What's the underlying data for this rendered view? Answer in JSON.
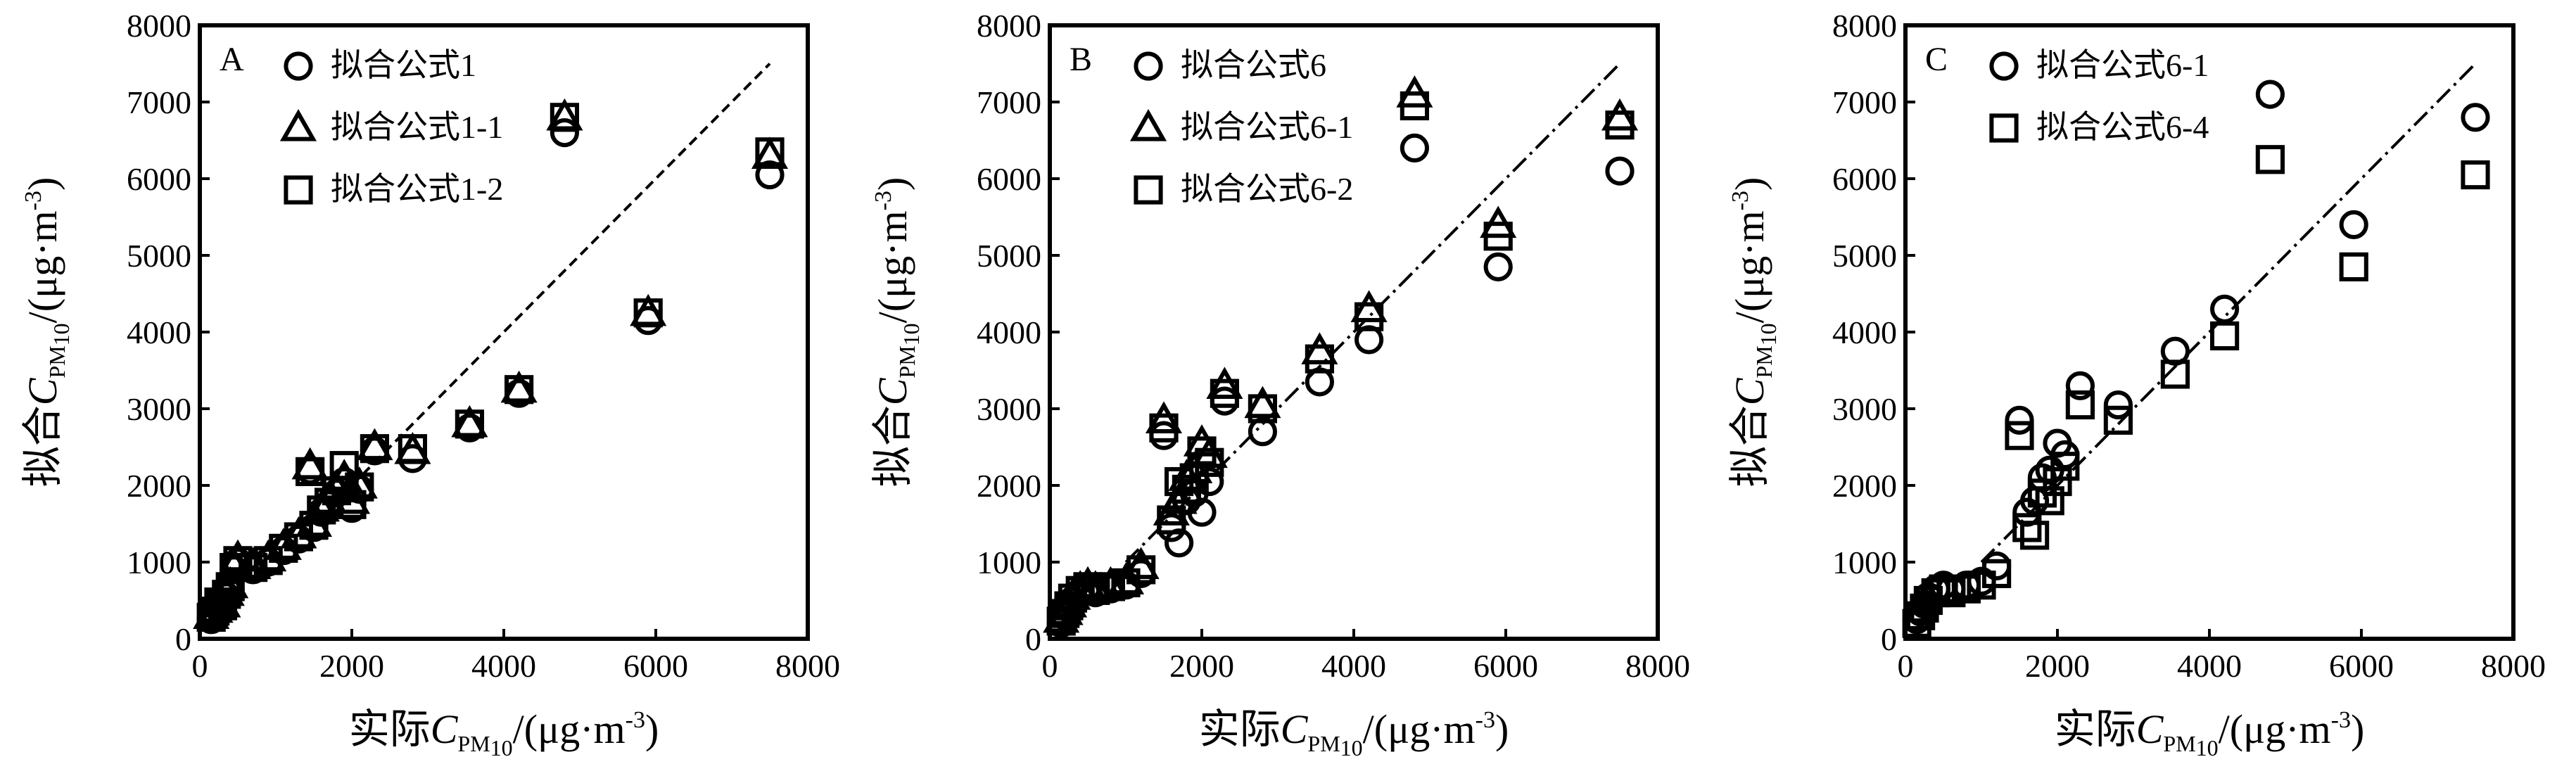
{
  "chart_data": [
    {
      "type": "scatter",
      "panel_label": "A",
      "xlabel": {
        "prefix": "实际",
        "var": "C",
        "sub": "PM10",
        "sub_main": "PM",
        "sub_digits": "10",
        "unit": "/(μg·m",
        "sup": "-3",
        "close": ")"
      },
      "ylabel": {
        "prefix": "拟合",
        "var": "C",
        "sub": "PM10",
        "sub_main": "PM",
        "sub_digits": "10",
        "unit": "/(μg·m",
        "sup": "-3",
        "close": ")"
      },
      "xlim": [
        0,
        8000
      ],
      "ylim": [
        0,
        8000
      ],
      "xticks": [
        "0",
        "2000",
        "4000",
        "6000",
        "8000"
      ],
      "yticks": [
        "0",
        "1000",
        "2000",
        "3000",
        "4000",
        "5000",
        "6000",
        "7000",
        "8000"
      ],
      "grid": false,
      "legend_position": "top-left",
      "reference_line": {
        "style": "dashed",
        "x": [
          2000,
          7500
        ],
        "y": [
          2000,
          7500
        ]
      },
      "series": [
        {
          "name": "拟合公式1",
          "marker": "circle",
          "x": [
            150,
            200,
            250,
            300,
            350,
            400,
            450,
            500,
            700,
            900,
            1100,
            1300,
            1450,
            1500,
            1600,
            1700,
            1800,
            1900,
            2000,
            2100,
            2300,
            2800,
            3550,
            4200,
            4800,
            5900,
            7500
          ],
          "y": [
            250,
            350,
            450,
            400,
            550,
            650,
            900,
            1000,
            900,
            1000,
            1150,
            1300,
            2200,
            1450,
            1650,
            1750,
            1900,
            2050,
            1700,
            1950,
            2450,
            2350,
            2750,
            3200,
            6600,
            4150,
            6050
          ]
        },
        {
          "name": "拟合公式1-1",
          "marker": "triangle",
          "x": [
            150,
            200,
            250,
            300,
            350,
            400,
            450,
            500,
            700,
            900,
            1100,
            1300,
            1450,
            1500,
            1600,
            1700,
            1800,
            1900,
            2000,
            2100,
            2300,
            2800,
            3550,
            4200,
            4800,
            5900,
            7500
          ],
          "y": [
            300,
            380,
            500,
            450,
            600,
            700,
            950,
            1050,
            950,
            1050,
            1200,
            1350,
            2250,
            1500,
            1700,
            1800,
            1950,
            2100,
            1800,
            2000,
            2500,
            2450,
            2800,
            3250,
            6800,
            4250,
            6300
          ]
        },
        {
          "name": "拟合公式1-2",
          "marker": "square",
          "x": [
            150,
            200,
            250,
            300,
            350,
            400,
            450,
            500,
            700,
            900,
            1100,
            1300,
            1450,
            1500,
            1600,
            1700,
            1800,
            1900,
            2000,
            2100,
            2300,
            2800,
            3550,
            4200,
            4800,
            5900,
            7500
          ],
          "y": [
            280,
            360,
            480,
            430,
            580,
            680,
            930,
            1020,
            930,
            1020,
            1180,
            1330,
            2180,
            1480,
            1680,
            1780,
            1930,
            2260,
            1750,
            1980,
            2480,
            2480,
            2800,
            3250,
            6800,
            4250,
            6350
          ]
        }
      ]
    },
    {
      "type": "scatter",
      "panel_label": "B",
      "xlabel": {
        "prefix": "实际",
        "var": "C",
        "sub": "PM10",
        "sub_main": "PM",
        "sub_digits": "10",
        "unit": "/(μg·m",
        "sup": "-3",
        "close": ")"
      },
      "ylabel": {
        "prefix": "拟合",
        "var": "C",
        "sub": "PM10",
        "sub_main": "PM",
        "sub_digits": "10",
        "unit": "/(μg·m",
        "sup": "-3",
        "close": ")"
      },
      "xlim": [
        0,
        8000
      ],
      "ylim": [
        0,
        8000
      ],
      "xticks": [
        "0",
        "2000",
        "4000",
        "6000",
        "8000"
      ],
      "yticks": [
        "0",
        "1000",
        "2000",
        "3000",
        "4000",
        "5000",
        "6000",
        "7000",
        "8000"
      ],
      "grid": false,
      "legend_position": "top-left",
      "reference_line": {
        "style": "dash-dot",
        "x": [
          1000,
          7500
        ],
        "y": [
          1000,
          7500
        ]
      },
      "series": [
        {
          "name": "拟合公式6",
          "marker": "circle",
          "x": [
            150,
            200,
            250,
            300,
            400,
            500,
            600,
            800,
            1000,
            1200,
            1500,
            1600,
            1700,
            1800,
            1900,
            2000,
            2100,
            2300,
            2800,
            3550,
            4200,
            4800,
            5900,
            7500
          ],
          "y": [
            200,
            300,
            400,
            500,
            600,
            650,
            600,
            650,
            700,
            850,
            2650,
            1450,
            1250,
            1800,
            1900,
            1650,
            2050,
            3100,
            2700,
            3350,
            3900,
            6400,
            4850,
            6100
          ]
        },
        {
          "name": "拟合公式6-1",
          "marker": "triangle",
          "x": [
            150,
            200,
            250,
            300,
            400,
            500,
            600,
            800,
            1000,
            1200,
            1500,
            1600,
            1700,
            1800,
            1900,
            2000,
            2100,
            2300,
            2800,
            3550,
            4200,
            4800,
            5900,
            7500
          ],
          "y": [
            250,
            350,
            450,
            550,
            650,
            700,
            650,
            700,
            750,
            950,
            2850,
            1650,
            1800,
            2100,
            2200,
            2550,
            2400,
            3300,
            3050,
            3750,
            4300,
            7100,
            5400,
            6800
          ]
        },
        {
          "name": "拟合公式6-2",
          "marker": "square",
          "x": [
            150,
            200,
            250,
            300,
            400,
            500,
            600,
            800,
            1000,
            1200,
            1500,
            1600,
            1700,
            1800,
            1900,
            2000,
            2100,
            2300,
            2800,
            3550,
            4200,
            4800,
            5900,
            7500
          ],
          "y": [
            230,
            330,
            430,
            530,
            630,
            680,
            630,
            680,
            730,
            900,
            2750,
            1550,
            2050,
            1950,
            2100,
            2450,
            2300,
            3200,
            3000,
            3650,
            4200,
            6950,
            5250,
            6700
          ]
        }
      ]
    },
    {
      "type": "scatter",
      "panel_label": "C",
      "xlabel": {
        "prefix": "实际",
        "var": "C",
        "sub": "PM10",
        "sub_main": "PM",
        "sub_digits": "10",
        "unit": "/(μg·m",
        "sup": "-3",
        "close": ")"
      },
      "ylabel": {
        "prefix": "拟合",
        "var": "C",
        "sub": "PM10",
        "sub_main": "PM",
        "sub_digits": "10",
        "unit": "/(μg·m",
        "sup": "-3",
        "close": ")"
      },
      "xlim": [
        0,
        8000
      ],
      "ylim": [
        0,
        8000
      ],
      "xticks": [
        "0",
        "2000",
        "4000",
        "6000",
        "8000"
      ],
      "yticks": [
        "0",
        "1000",
        "2000",
        "3000",
        "4000",
        "5000",
        "6000",
        "7000",
        "8000"
      ],
      "grid": false,
      "legend_position": "top-left",
      "reference_line": {
        "style": "dash-dot",
        "x": [
          1000,
          7500
        ],
        "y": [
          1000,
          7500
        ]
      },
      "series": [
        {
          "name": "拟合公式6-1",
          "marker": "circle",
          "x": [
            150,
            200,
            250,
            300,
            400,
            500,
            600,
            800,
            1000,
            1200,
            1500,
            1600,
            1700,
            1800,
            1900,
            2000,
            2100,
            2300,
            2800,
            3550,
            4200,
            4800,
            5900,
            7500
          ],
          "y": [
            250,
            350,
            450,
            550,
            650,
            700,
            650,
            700,
            750,
            950,
            2850,
            1650,
            1800,
            2100,
            2200,
            2550,
            2400,
            3300,
            3050,
            3750,
            4300,
            7100,
            5400,
            6800
          ]
        },
        {
          "name": "拟合公式6-4",
          "marker": "square",
          "x": [
            150,
            200,
            250,
            300,
            400,
            500,
            600,
            800,
            1000,
            1200,
            1500,
            1600,
            1700,
            1800,
            1900,
            2000,
            2100,
            2300,
            2800,
            3550,
            4200,
            4800,
            5900,
            7500
          ],
          "y": [
            200,
            300,
            400,
            500,
            600,
            650,
            600,
            650,
            700,
            850,
            2650,
            1450,
            1350,
            1900,
            1800,
            2050,
            2250,
            3050,
            2850,
            3450,
            3950,
            6250,
            4850,
            6050
          ]
        }
      ]
    }
  ]
}
